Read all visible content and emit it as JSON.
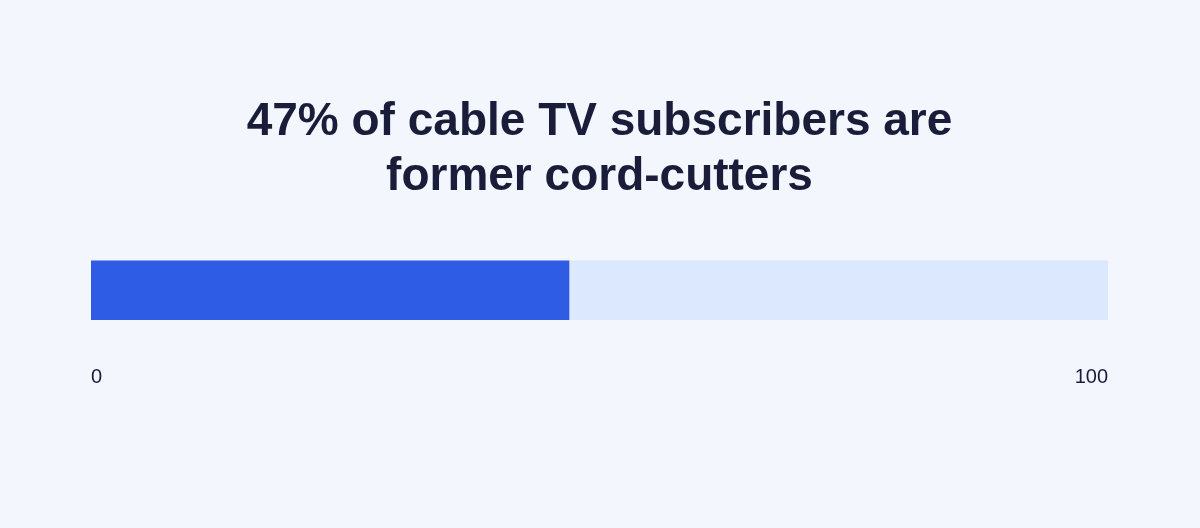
{
  "chart_data": {
    "type": "bar",
    "orientation": "horizontal",
    "title": "47% of cable TV subscribers are former cord-cutters",
    "categories": [
      null
    ],
    "values": [
      47
    ],
    "color": "#2e5ce5",
    "xlim": [
      0,
      100
    ],
    "xticks": [
      0,
      100
    ],
    "grid": false,
    "tick_labels": "x"
  }
}
